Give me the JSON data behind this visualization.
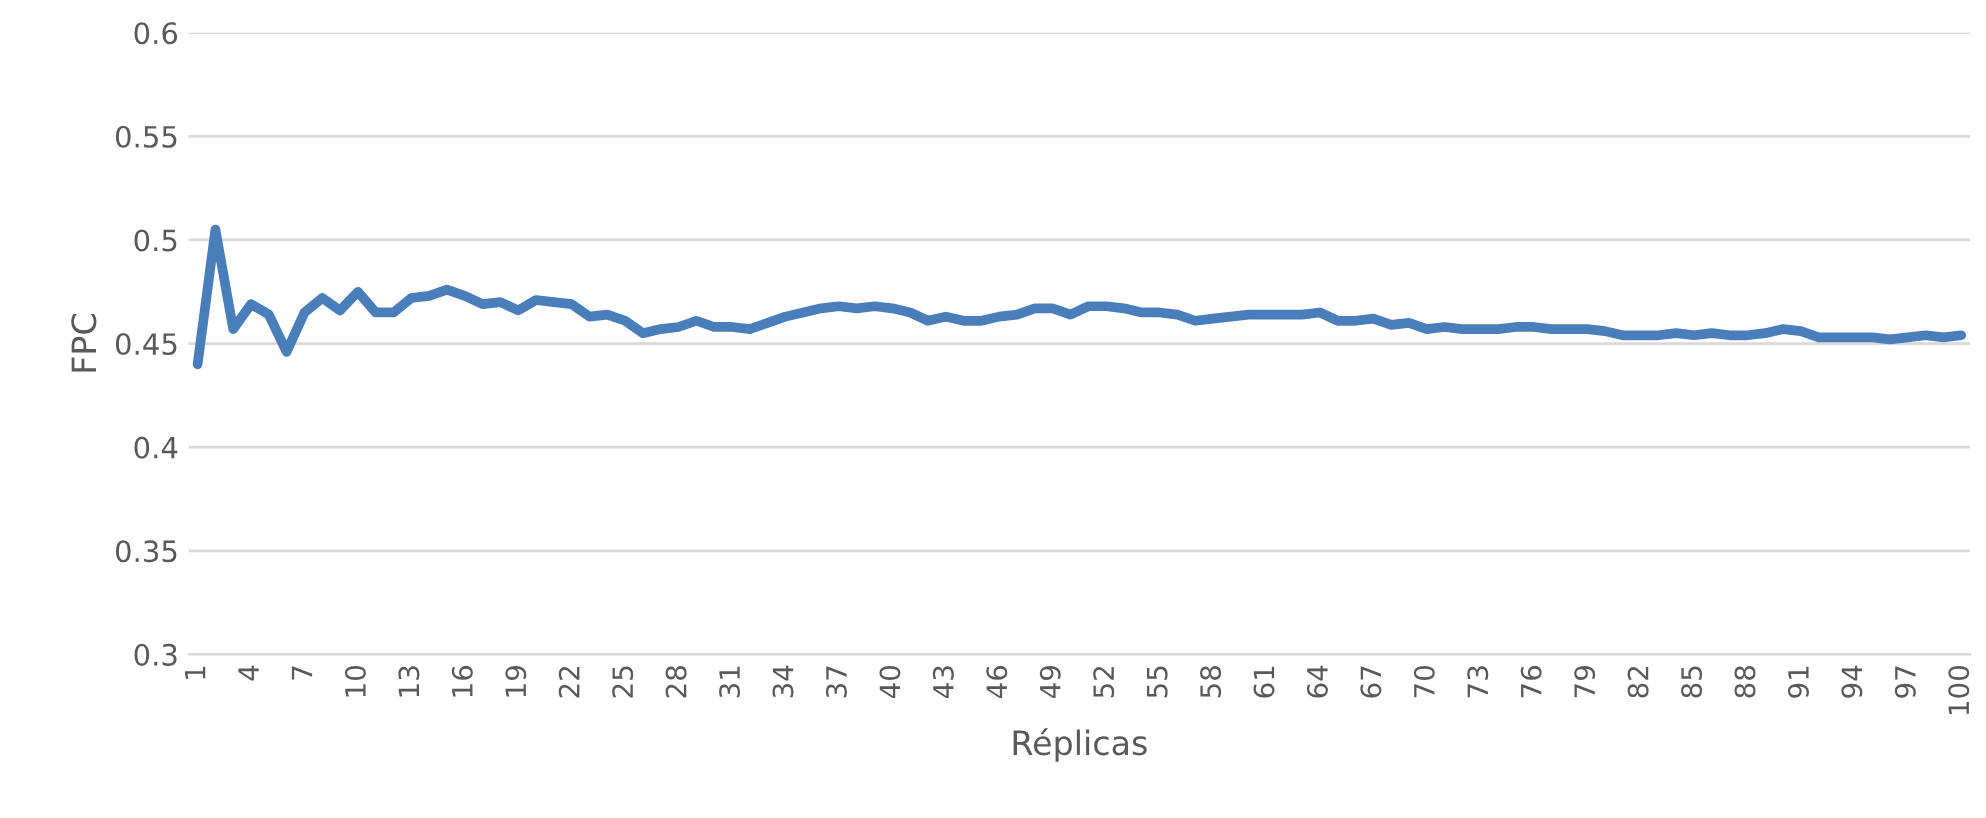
{
  "chart_data": {
    "type": "line",
    "xlabel": "Réplicas",
    "ylabel": "FPC",
    "categories": [
      "1",
      null,
      null,
      "4",
      null,
      null,
      "7",
      null,
      null,
      "10",
      null,
      null,
      "13",
      null,
      null,
      "16",
      null,
      null,
      "19",
      null,
      null,
      "22",
      null,
      null,
      "25",
      null,
      null,
      "28",
      null,
      null,
      "31",
      null,
      null,
      "34",
      null,
      null,
      "37",
      null,
      null,
      "40",
      null,
      null,
      "43",
      null,
      null,
      "46",
      null,
      null,
      "49",
      null,
      null,
      "52",
      null,
      null,
      "55",
      null,
      null,
      "58",
      null,
      null,
      "61",
      null,
      null,
      "64",
      null,
      null,
      "67",
      null,
      null,
      "70",
      null,
      null,
      "73",
      null,
      null,
      "76",
      null,
      null,
      "79",
      null,
      null,
      "82",
      null,
      null,
      "85",
      null,
      null,
      "88",
      null,
      null,
      "91",
      null,
      null,
      "94",
      null,
      null,
      "97",
      null,
      null,
      "100"
    ],
    "series": [
      {
        "color": "#4a7ebb",
        "values": [
          0.44,
          0.505,
          0.457,
          0.469,
          0.464,
          0.446,
          0.465,
          0.472,
          0.466,
          0.475,
          0.465,
          0.465,
          0.472,
          0.473,
          0.476,
          0.473,
          0.469,
          0.47,
          0.466,
          0.471,
          0.47,
          0.469,
          0.463,
          0.464,
          0.461,
          0.455,
          0.457,
          0.458,
          0.461,
          0.458,
          0.458,
          0.457,
          0.46,
          0.463,
          0.465,
          0.467,
          0.468,
          0.467,
          0.468,
          0.467,
          0.465,
          0.461,
          0.463,
          0.461,
          0.461,
          0.463,
          0.464,
          0.467,
          0.467,
          0.464,
          0.468,
          0.468,
          0.467,
          0.465,
          0.465,
          0.464,
          0.461,
          0.462,
          0.463,
          0.464,
          0.464,
          0.464,
          0.464,
          0.465,
          0.461,
          0.461,
          0.462,
          0.459,
          0.46,
          0.457,
          0.458,
          0.457,
          0.457,
          0.457,
          0.458,
          0.458,
          0.457,
          0.457,
          0.457,
          0.456,
          0.454,
          0.454,
          0.454,
          0.455,
          0.454,
          0.455,
          0.454,
          0.454,
          0.455,
          0.457,
          0.456,
          0.453,
          0.453,
          0.453,
          0.453,
          0.452,
          0.453,
          0.454,
          0.453,
          0.454
        ]
      }
    ],
    "ylim": [
      0.3,
      0.6
    ],
    "yticks": [
      0.3,
      0.35,
      0.4,
      0.45,
      0.5,
      0.55,
      0.6
    ],
    "grid": "y",
    "marker": "none",
    "line_style": "solid"
  }
}
